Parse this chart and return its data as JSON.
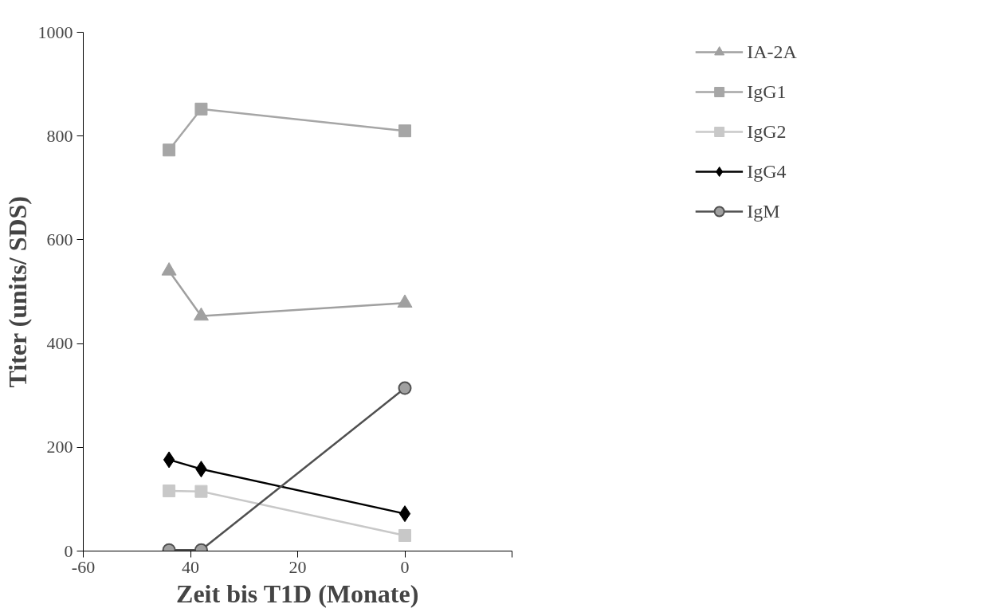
{
  "chart_data": {
    "type": "line",
    "xlabel": "Zeit bis T1D (Monate)",
    "ylabel": "Titer (units/ SDS)",
    "x": [
      -44,
      -38,
      0
    ],
    "series": [
      {
        "name": "IA-2A",
        "color": "#a0a0a0",
        "marker": "triangle",
        "values": [
          540,
          453,
          478
        ]
      },
      {
        "name": "IgG1",
        "color": "#a6a6a6",
        "marker": "square",
        "values": [
          773,
          852,
          810
        ]
      },
      {
        "name": "IgG2",
        "color": "#c8c8c8",
        "marker": "square",
        "values": [
          116,
          115,
          30
        ]
      },
      {
        "name": "IgG4",
        "color": "#000000",
        "marker": "diamond",
        "values": [
          176,
          158,
          72
        ]
      },
      {
        "name": "IgM",
        "color": "#505050",
        "marker": "circle",
        "values": [
          2,
          2,
          314
        ]
      }
    ],
    "xlim": [
      -60,
      20
    ],
    "xticks": [
      -60,
      {
        "value": -40,
        "label": "40"
      },
      {
        "value": -20,
        "label": "20"
      },
      0,
      {
        "value": 20,
        "label": null
      }
    ],
    "ylim": [
      0,
      1000
    ],
    "yticks": [
      0,
      200,
      400,
      600,
      800,
      1000
    ],
    "grid": false,
    "legend": "top right",
    "line_style": "solid"
  }
}
